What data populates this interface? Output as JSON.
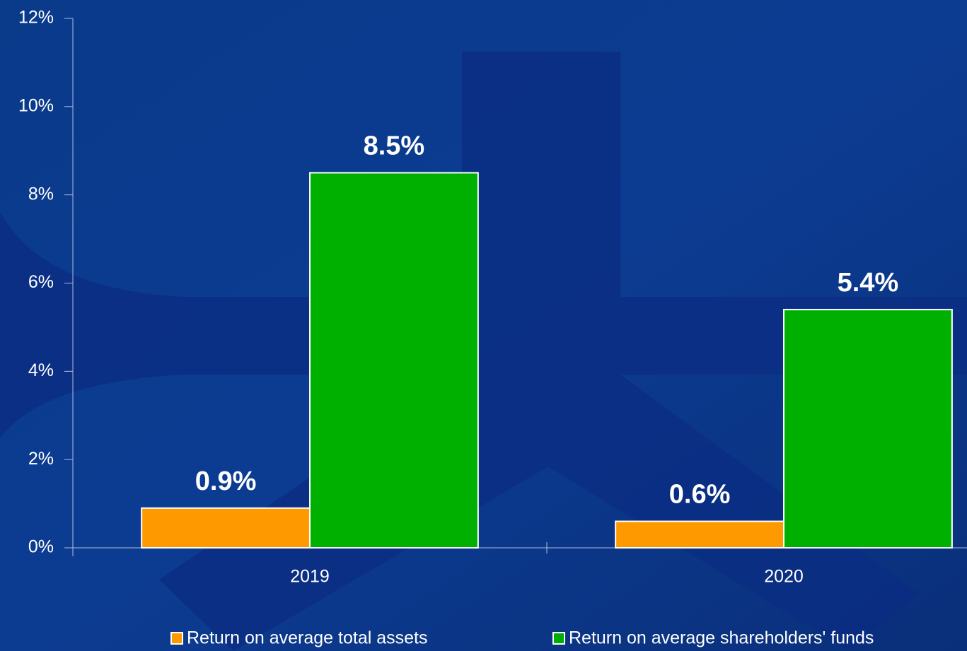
{
  "chart_data": {
    "type": "bar",
    "categories": [
      "2019",
      "2020"
    ],
    "series": [
      {
        "name": "Return on average total assets",
        "color": "#ff9900",
        "values": [
          0.9,
          0.6
        ],
        "value_labels": [
          "0.9%",
          "0.6%"
        ]
      },
      {
        "name": "Return on average shareholders' funds",
        "color": "#00b000",
        "values": [
          8.5,
          5.4
        ],
        "value_labels": [
          "8.5%",
          "5.4%"
        ]
      }
    ],
    "ylim": [
      0,
      12
    ],
    "yticks": [
      {
        "value": 0,
        "label": "0%"
      },
      {
        "value": 2,
        "label": "2%"
      },
      {
        "value": 4,
        "label": "4%"
      },
      {
        "value": 6,
        "label": "6%"
      },
      {
        "value": 8,
        "label": "8%"
      },
      {
        "value": 10,
        "label": "10%"
      },
      {
        "value": 12,
        "label": "12%"
      }
    ],
    "grid": false,
    "legend": "bottom"
  }
}
